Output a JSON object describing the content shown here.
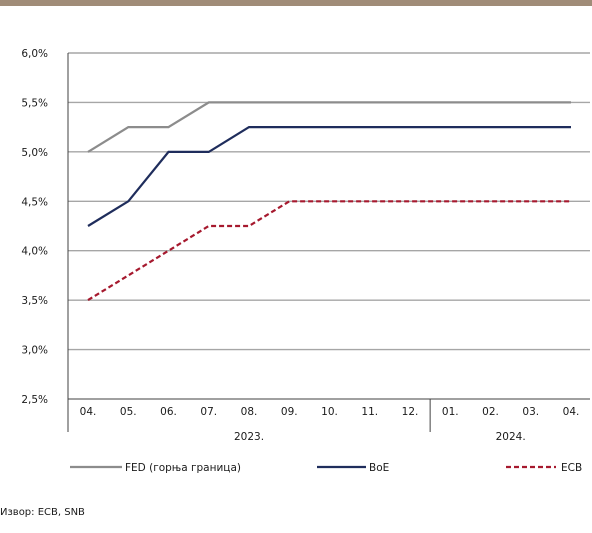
{
  "colors": {
    "top_band": "#a08c78",
    "gridline": "#a6a6a6",
    "axis": "#404040",
    "fed": "#8c8c8c",
    "boe": "#1f2d5c",
    "ecb": "#a6192e"
  },
  "chart_data": {
    "type": "line",
    "title": "",
    "xlabel": "",
    "ylabel": "",
    "categories": [
      "04.",
      "05.",
      "06.",
      "07.",
      "08.",
      "09.",
      "10.",
      "11.",
      "12.",
      "01.",
      "02.",
      "03.",
      "04."
    ],
    "year_groups": [
      {
        "label": "2023.",
        "start": 0,
        "end": 8
      },
      {
        "label": "2024.",
        "start": 9,
        "end": 12
      }
    ],
    "ylim": [
      2.5,
      6.0
    ],
    "y_ticks": [
      2.5,
      3.0,
      3.5,
      4.0,
      4.5,
      5.0,
      5.5,
      6.0
    ],
    "y_tick_labels": [
      "2,5%",
      "3,0%",
      "3,5%",
      "4,0%",
      "4,5%",
      "5,0%",
      "5,5%",
      "6,0%"
    ],
    "grid": true,
    "legend_position": "bottom",
    "series": [
      {
        "name": "FED (горња граница)",
        "color": "#8c8c8c",
        "style": "solid",
        "values": [
          5.0,
          5.25,
          5.25,
          5.5,
          5.5,
          5.5,
          5.5,
          5.5,
          5.5,
          5.5,
          5.5,
          5.5,
          5.5
        ]
      },
      {
        "name": "BoE",
        "color": "#1f2d5c",
        "style": "solid",
        "values": [
          4.25,
          4.5,
          5.0,
          5.0,
          5.25,
          5.25,
          5.25,
          5.25,
          5.25,
          5.25,
          5.25,
          5.25,
          5.25
        ]
      },
      {
        "name": "ECB",
        "color": "#a6192e",
        "style": "dashed",
        "values": [
          3.5,
          3.75,
          4.0,
          4.25,
          4.25,
          4.5,
          4.5,
          4.5,
          4.5,
          4.5,
          4.5,
          4.5,
          4.5
        ]
      }
    ]
  },
  "source_note": "Извор: ECB, SNB"
}
